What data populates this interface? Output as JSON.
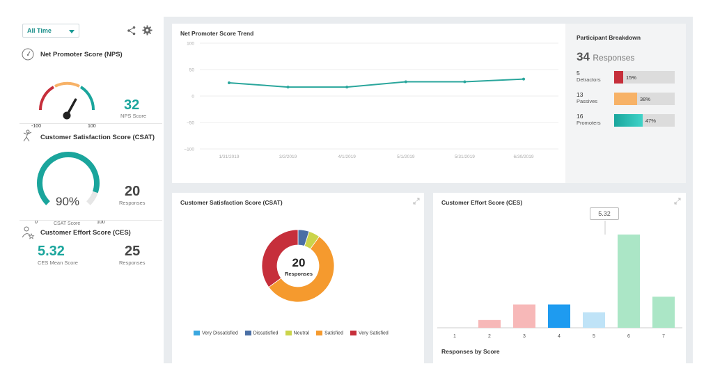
{
  "filter": {
    "selected": "All Time"
  },
  "nps": {
    "title": "Net Promoter Score (NPS)",
    "score": "32",
    "score_label": "NPS Score",
    "gauge_min": "-100",
    "gauge_max": "100",
    "gauge_value": 32
  },
  "csat": {
    "title": "Customer Satisfaction Score (CSAT)",
    "percent": "90%",
    "percent_value": 90,
    "gauge_label": "CSAT Score",
    "gauge_min": "0",
    "gauge_max": "100",
    "responses": "20",
    "responses_label": "Responses"
  },
  "ces": {
    "title": "Customer Effort Score (CES)",
    "mean": "5.32",
    "mean_label": "CES Mean Score",
    "responses": "25",
    "responses_label": "Responses"
  },
  "breakdown": {
    "title": "Participant Breakdown",
    "total": "34",
    "total_label": "Responses",
    "rows": [
      {
        "count": "5",
        "name": "Detractors",
        "pct": "15%",
        "value": 15,
        "color": "#c62f3b"
      },
      {
        "count": "13",
        "name": "Passives",
        "pct": "38%",
        "value": 38,
        "color": "#f7b267"
      },
      {
        "count": "16",
        "name": "Promoters",
        "pct": "47%",
        "value": 47,
        "color": "#1aa59c"
      }
    ]
  },
  "chart_data": [
    {
      "type": "line",
      "title": "Net Promoter Score Trend",
      "x": [
        "1/31/2019",
        "3/2/2019",
        "4/1/2019",
        "5/1/2019",
        "5/31/2019",
        "6/30/2019"
      ],
      "y_ticks": [
        "100",
        "50",
        "0",
        "−50",
        "−100"
      ],
      "ylim": [
        -100,
        100
      ],
      "series": [
        {
          "values": [
            25,
            17,
            17,
            27,
            27,
            32
          ],
          "color": "#2aa69c"
        }
      ]
    },
    {
      "type": "pie",
      "title": "Customer Satisfaction Score (CSAT)",
      "center_value": "20",
      "center_label": "Responses",
      "slices": [
        {
          "name": "Very Dissatisfied",
          "value": 0,
          "color": "#3aa7df"
        },
        {
          "name": "Dissatisfied",
          "value": 1,
          "color": "#4a6fa5"
        },
        {
          "name": "Neutral",
          "value": 1,
          "color": "#cbd44a"
        },
        {
          "name": "Satisfied",
          "value": 11,
          "color": "#f59a2e"
        },
        {
          "name": "Very Satisfied",
          "value": 7,
          "color": "#c62f3b"
        }
      ]
    },
    {
      "type": "bar",
      "title": "Customer Effort Score (CES)",
      "xlabel": "Responses by Score",
      "categories": [
        "1",
        "2",
        "3",
        "4",
        "5",
        "6",
        "7"
      ],
      "values": [
        0,
        1,
        3,
        3,
        2,
        12,
        4
      ],
      "colors": [
        "#f5b3b3",
        "#f7b8b8",
        "#f7b8b8",
        "#1e9bf0",
        "#bfe3f7",
        "#abe6c6",
        "#abe6c6"
      ],
      "tooltip": "5.32"
    }
  ]
}
